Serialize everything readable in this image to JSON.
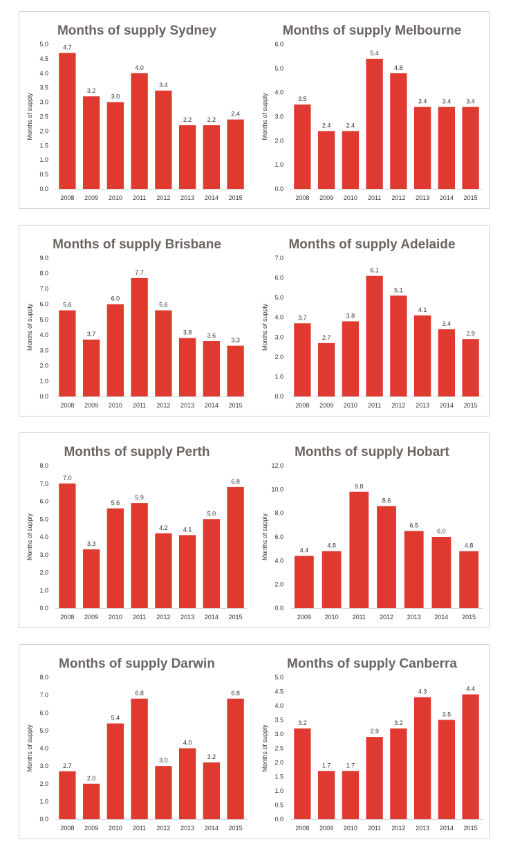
{
  "style": {
    "bar_color": "#e03a30",
    "title_color": "#6b6461"
  },
  "chart_data": [
    {
      "type": "bar",
      "title": "Months of supply Sydney",
      "ylabel": "Months of supply",
      "categories": [
        "2008",
        "2009",
        "2010",
        "2011",
        "2012",
        "2013",
        "2014",
        "2015"
      ],
      "values": [
        4.7,
        3.2,
        3.0,
        4.0,
        3.4,
        2.2,
        2.2,
        2.4
      ],
      "data_labels": [
        "4.7",
        "3.2",
        "3.0",
        "4.0",
        "3.4",
        "2.2",
        "2.2",
        "2.4"
      ],
      "ylim": [
        0,
        5.0
      ],
      "yticks": [
        "0.0",
        "0.5",
        "1.0",
        "1.5",
        "2.0",
        "2.5",
        "3.0",
        "3.5",
        "4.0",
        "4.5",
        "5.0"
      ],
      "grid": false,
      "legend": "none"
    },
    {
      "type": "bar",
      "title": "Months of supply Melbourne",
      "ylabel": "Months of supply",
      "categories": [
        "2008",
        "2009",
        "2010",
        "2011",
        "2012",
        "2013",
        "2014",
        "2015"
      ],
      "values": [
        3.5,
        2.4,
        2.4,
        5.4,
        4.8,
        3.4,
        3.4,
        3.4
      ],
      "data_labels": [
        "3.5",
        "2.4",
        "2.4",
        "5.4",
        "4.8",
        "3.4",
        "3.4",
        "3.4"
      ],
      "ylim": [
        0,
        6.0
      ],
      "yticks": [
        "0.0",
        "1.0",
        "2.0",
        "3.0",
        "4.0",
        "5.0",
        "6.0"
      ],
      "grid": false,
      "legend": "none"
    },
    {
      "type": "bar",
      "title": "Months of supply Brisbane",
      "ylabel": "Months of supply",
      "categories": [
        "2008",
        "2009",
        "2010",
        "2011",
        "2012",
        "2013",
        "2014",
        "2015"
      ],
      "values": [
        5.6,
        3.7,
        6.0,
        7.7,
        5.6,
        3.8,
        3.6,
        3.3
      ],
      "data_labels": [
        "5.6",
        "3.7",
        "6.0",
        "7.7",
        "5.6",
        "3.8",
        "3.6",
        "3.3"
      ],
      "ylim": [
        0,
        9.0
      ],
      "yticks": [
        "0.0",
        "1.0",
        "2.0",
        "3.0",
        "4.0",
        "5.0",
        "6.0",
        "7.0",
        "8.0",
        "9.0"
      ],
      "grid": false,
      "legend": "none"
    },
    {
      "type": "bar",
      "title": "Months of supply Adelaide",
      "ylabel": "Months of supply",
      "categories": [
        "2008",
        "2009",
        "2010",
        "2011",
        "2012",
        "2013",
        "2014",
        "2015"
      ],
      "values": [
        3.7,
        2.7,
        3.8,
        6.1,
        5.1,
        4.1,
        3.4,
        2.9
      ],
      "data_labels": [
        "3.7",
        "2.7",
        "3.8",
        "6.1",
        "5.1",
        "4.1",
        "3.4",
        "2.9"
      ],
      "ylim": [
        0,
        7.0
      ],
      "yticks": [
        "0.0",
        "1.0",
        "2.0",
        "3.0",
        "4.0",
        "5.0",
        "6.0",
        "7.0"
      ],
      "grid": false,
      "legend": "none"
    },
    {
      "type": "bar",
      "title": "Months of supply Perth",
      "ylabel": "Months of supply",
      "categories": [
        "2008",
        "2009",
        "2010",
        "2011",
        "2012",
        "2013",
        "2014",
        "2015"
      ],
      "values": [
        7.0,
        3.3,
        5.6,
        5.9,
        4.2,
        4.1,
        5.0,
        6.8
      ],
      "data_labels": [
        "7.0",
        "3.3",
        "5.6",
        "5.9",
        "4.2",
        "4.1",
        "5.0",
        "6.8"
      ],
      "ylim": [
        0,
        8.0
      ],
      "yticks": [
        "0.0",
        "1.0",
        "2.0",
        "3.0",
        "4.0",
        "5.0",
        "6.0",
        "7.0",
        "8.0"
      ],
      "grid": false,
      "legend": "none"
    },
    {
      "type": "bar",
      "title": "Months of supply Hobart",
      "ylabel": "Months of supply",
      "categories": [
        "2009",
        "2010",
        "2011",
        "2012",
        "2013",
        "2014",
        "2015"
      ],
      "values": [
        4.4,
        4.8,
        9.8,
        8.6,
        6.5,
        6.0,
        4.8
      ],
      "data_labels": [
        "4.4",
        "4.8",
        "9.8",
        "8.6",
        "6.5",
        "6.0",
        "4.8"
      ],
      "ylim": [
        0,
        12.0
      ],
      "yticks": [
        "0.0",
        "2.0",
        "4.0",
        "6.0",
        "8.0",
        "10.0",
        "12.0"
      ],
      "grid": false,
      "legend": "none"
    },
    {
      "type": "bar",
      "title": "Months of supply Darwin",
      "ylabel": "Months of supply",
      "categories": [
        "2008",
        "2009",
        "2010",
        "2011",
        "2012",
        "2013",
        "2014",
        "2015"
      ],
      "values": [
        2.7,
        2.0,
        5.4,
        6.8,
        3.0,
        4.0,
        3.2,
        6.8
      ],
      "data_labels": [
        "2.7",
        "2.0",
        "5.4",
        "6.8",
        "3.0",
        "4.0",
        "3.2",
        "6.8"
      ],
      "ylim": [
        0,
        8.0
      ],
      "yticks": [
        "0.0",
        "1.0",
        "2.0",
        "3.0",
        "4.0",
        "5.0",
        "6.0",
        "7.0",
        "8.0"
      ],
      "grid": false,
      "legend": "none"
    },
    {
      "type": "bar",
      "title": "Months of supply Canberra",
      "ylabel": "Months of supply",
      "categories": [
        "2008",
        "2009",
        "2010",
        "2011",
        "2012",
        "2013",
        "2014",
        "2015"
      ],
      "values": [
        3.2,
        1.7,
        1.7,
        2.9,
        3.2,
        4.3,
        3.5,
        4.4
      ],
      "data_labels": [
        "3.2",
        "1.7",
        "1.7",
        "2.9",
        "3.2",
        "4.3",
        "3.5",
        "4.4"
      ],
      "ylim": [
        0,
        5.0
      ],
      "yticks": [
        "0.0",
        "0.5",
        "1.0",
        "1.5",
        "2.0",
        "2.5",
        "3.0",
        "3.5",
        "4.0",
        "4.5",
        "5.0"
      ],
      "grid": false,
      "legend": "none"
    }
  ]
}
